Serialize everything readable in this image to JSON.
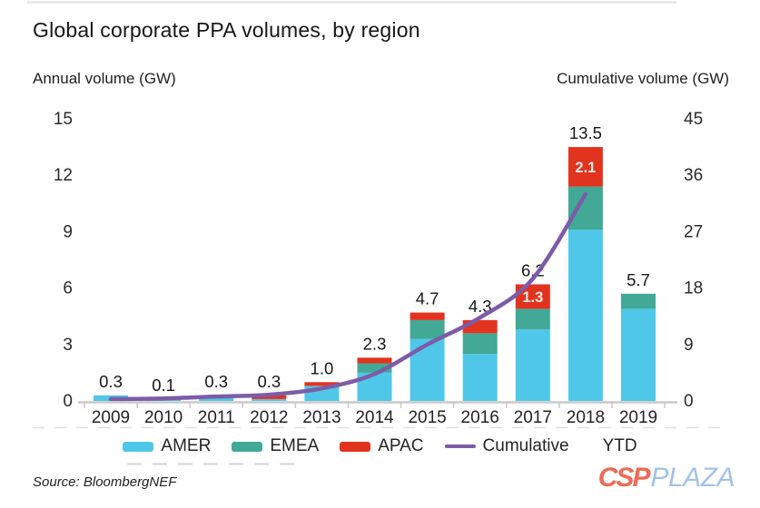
{
  "title": "Global corporate PPA volumes, by region",
  "left_axis_title": "Annual volume (GW)",
  "right_axis_title": "Cumulative volume (GW)",
  "source": "Source: BloombergNEF",
  "watermark": {
    "csp": "CSP",
    "plaza": "PLAZA"
  },
  "colors": {
    "amer": "#4fc7e8",
    "emea": "#41a996",
    "apac": "#e2331f",
    "cumulative": "#7c5ca8",
    "axis_line": "#c9c9c9",
    "artifact": "#d9d9d9"
  },
  "chart_data": {
    "type": "bar",
    "subtype": "stacked-bars-with-cumulative-line",
    "categories": [
      "2009",
      "2010",
      "2011",
      "2012",
      "2013",
      "2014",
      "2015",
      "2016",
      "2017",
      "2018",
      "2019"
    ],
    "series": [
      {
        "name": "AMER",
        "color": "#4fc7e8",
        "values": [
          0.3,
          0.1,
          0.3,
          0.1,
          0.8,
          1.5,
          3.3,
          2.5,
          3.8,
          9.1,
          4.9
        ]
      },
      {
        "name": "EMEA",
        "color": "#41a996",
        "values": [
          0,
          0,
          0,
          0,
          0,
          0.5,
          1.0,
          1.1,
          1.1,
          2.3,
          0.8
        ]
      },
      {
        "name": "APAC",
        "color": "#e2331f",
        "values": [
          0,
          0,
          0,
          0.2,
          0.2,
          0.3,
          0.4,
          0.7,
          1.3,
          2.1,
          0
        ]
      }
    ],
    "totals_labels": [
      "0.3",
      "0.1",
      "0.3",
      "0.3",
      "1.0",
      "2.3",
      "4.7",
      "4.3",
      "6.2",
      "13.5",
      "5.7"
    ],
    "in_bar_labels": [
      {
        "category": "2017",
        "label": "1.3"
      },
      {
        "category": "2018",
        "label": "2.1"
      }
    ],
    "cumulative": {
      "name": "Cumulative",
      "color": "#7c5ca8",
      "x": [
        "2009",
        "2010",
        "2011",
        "2012",
        "2013",
        "2014",
        "2015",
        "2016",
        "2017",
        "2018"
      ],
      "values": [
        0.3,
        0.4,
        0.7,
        1.0,
        2.0,
        4.3,
        9.0,
        13.3,
        19.5,
        33.0
      ]
    },
    "left_axis": {
      "label": "Annual volume (GW)",
      "ticks": [
        0,
        3,
        6,
        9,
        12,
        15
      ],
      "max": 15
    },
    "right_axis": {
      "label": "Cumulative volume (GW)",
      "ticks": [
        0,
        9,
        18,
        27,
        36,
        45
      ],
      "max": 45
    },
    "grid": false,
    "legend_position": "bottom",
    "legend": [
      {
        "label": "AMER",
        "swatch": "rect",
        "color": "#4fc7e8"
      },
      {
        "label": "EMEA",
        "swatch": "rect",
        "color": "#41a996"
      },
      {
        "label": "APAC",
        "swatch": "rect",
        "color": "#e2331f"
      },
      {
        "label": "Cumulative",
        "swatch": "line",
        "color": "#7c5ca8"
      },
      {
        "label": "YTD",
        "swatch": "none",
        "color": ""
      }
    ]
  }
}
